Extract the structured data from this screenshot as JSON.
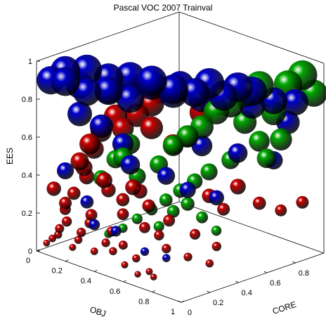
{
  "chart_data": {
    "type": "scatter",
    "title": "Pascal VOC 2007 Trainval",
    "xlabel": "OBJ",
    "ylabel": "CORE",
    "zlabel": "EES",
    "xlim": [
      0,
      1
    ],
    "ylim": [
      0,
      1
    ],
    "zlim": [
      0,
      1
    ],
    "x_ticks": [
      "0",
      "0.2",
      "0.4",
      "0.6",
      "0.8",
      "1"
    ],
    "y_ticks": [
      "0",
      "0.2",
      "0.4",
      "0.6",
      "0.8"
    ],
    "z_ticks": [
      "0",
      "0.2",
      "0.4",
      "0.6",
      "0.8",
      "1"
    ],
    "grid": false,
    "series": [
      {
        "color": "#cc0000",
        "points": [
          [
            0.05,
            0.02,
            0.05
          ],
          [
            0.08,
            0.03,
            0.08
          ],
          [
            0.1,
            0.05,
            0.1
          ],
          [
            0.12,
            0.04,
            0.14
          ],
          [
            0.15,
            0.06,
            0.18
          ],
          [
            0.2,
            0.05,
            0.06
          ],
          [
            0.22,
            0.07,
            0.1
          ],
          [
            0.25,
            0.06,
            0.15
          ],
          [
            0.28,
            0.09,
            0.2
          ],
          [
            0.3,
            0.08,
            0.25
          ],
          [
            0.35,
            0.05,
            0.08
          ],
          [
            0.38,
            0.1,
            0.12
          ],
          [
            0.4,
            0.12,
            0.18
          ],
          [
            0.45,
            0.08,
            0.1
          ],
          [
            0.5,
            0.1,
            0.14
          ],
          [
            0.55,
            0.06,
            0.06
          ],
          [
            0.6,
            0.09,
            0.1
          ],
          [
            0.65,
            0.05,
            0.04
          ],
          [
            0.7,
            0.08,
            0.06
          ],
          [
            0.75,
            0.06,
            0.05
          ],
          [
            0.1,
            0.1,
            0.22
          ],
          [
            0.12,
            0.14,
            0.3
          ],
          [
            0.15,
            0.2,
            0.38
          ],
          [
            0.18,
            0.15,
            0.45
          ],
          [
            0.2,
            0.1,
            0.5
          ],
          [
            0.22,
            0.18,
            0.55
          ],
          [
            0.25,
            0.12,
            0.6
          ],
          [
            0.3,
            0.2,
            0.35
          ],
          [
            0.32,
            0.15,
            0.42
          ],
          [
            0.35,
            0.25,
            0.3
          ],
          [
            0.4,
            0.2,
            0.25
          ],
          [
            0.42,
            0.3,
            0.35
          ],
          [
            0.45,
            0.22,
            0.4
          ],
          [
            0.5,
            0.28,
            0.3
          ],
          [
            0.55,
            0.2,
            0.22
          ],
          [
            0.6,
            0.25,
            0.18
          ],
          [
            0.62,
            0.3,
            0.25
          ],
          [
            0.7,
            0.2,
            0.15
          ],
          [
            0.75,
            0.35,
            0.2
          ],
          [
            0.8,
            0.25,
            0.12
          ],
          [
            0.85,
            0.4,
            0.15
          ],
          [
            0.9,
            0.3,
            0.1
          ],
          [
            0.3,
            0.3,
            0.65
          ],
          [
            0.35,
            0.35,
            0.72
          ],
          [
            0.4,
            0.4,
            0.78
          ],
          [
            0.45,
            0.35,
            0.68
          ],
          [
            0.5,
            0.45,
            0.58
          ],
          [
            0.55,
            0.5,
            0.62
          ],
          [
            0.6,
            0.55,
            0.75
          ],
          [
            0.65,
            0.6,
            0.8
          ],
          [
            0.2,
            0.25,
            0.62
          ],
          [
            0.25,
            0.3,
            0.7
          ],
          [
            0.7,
            0.5,
            0.35
          ],
          [
            0.75,
            0.55,
            0.28
          ],
          [
            0.8,
            0.6,
            0.4
          ],
          [
            0.85,
            0.7,
            0.3
          ],
          [
            0.9,
            0.8,
            0.25
          ],
          [
            0.95,
            0.9,
            0.28
          ],
          [
            0.15,
            0.05,
            0.28
          ],
          [
            0.1,
            0.02,
            0.35
          ]
        ]
      },
      {
        "color": "#0000cc",
        "points": [
          [
            0.05,
            0.05,
            0.9
          ],
          [
            0.1,
            0.1,
            0.95
          ],
          [
            0.15,
            0.05,
            0.92
          ],
          [
            0.2,
            0.15,
            0.97
          ],
          [
            0.25,
            0.1,
            0.88
          ],
          [
            0.3,
            0.2,
            0.94
          ],
          [
            0.35,
            0.15,
            0.9
          ],
          [
            0.4,
            0.25,
            0.96
          ],
          [
            0.45,
            0.2,
            0.87
          ],
          [
            0.5,
            0.3,
            0.93
          ],
          [
            0.55,
            0.25,
            0.98
          ],
          [
            0.6,
            0.35,
            0.9
          ],
          [
            0.65,
            0.3,
            0.95
          ],
          [
            0.7,
            0.4,
            0.92
          ],
          [
            0.75,
            0.45,
            0.97
          ],
          [
            0.8,
            0.5,
            0.9
          ],
          [
            0.85,
            0.55,
            0.95
          ],
          [
            0.9,
            0.6,
            0.93
          ],
          [
            0.1,
            0.2,
            0.85
          ],
          [
            0.2,
            0.3,
            0.82
          ],
          [
            0.3,
            0.35,
            0.86
          ],
          [
            0.4,
            0.45,
            0.84
          ],
          [
            0.5,
            0.5,
            0.88
          ],
          [
            0.6,
            0.55,
            0.82
          ],
          [
            0.7,
            0.6,
            0.86
          ],
          [
            0.8,
            0.7,
            0.8
          ],
          [
            0.9,
            0.75,
            0.84
          ],
          [
            0.95,
            0.85,
            0.82
          ],
          [
            0.2,
            0.1,
            0.75
          ],
          [
            0.3,
            0.15,
            0.7
          ],
          [
            0.4,
            0.2,
            0.62
          ],
          [
            0.5,
            0.15,
            0.55
          ],
          [
            0.6,
            0.3,
            0.48
          ],
          [
            0.7,
            0.35,
            0.42
          ],
          [
            0.8,
            0.45,
            0.38
          ],
          [
            0.15,
            0.05,
            0.45
          ],
          [
            0.25,
            0.1,
            0.3
          ],
          [
            0.35,
            0.05,
            0.22
          ],
          [
            0.45,
            0.1,
            0.2
          ],
          [
            0.6,
            0.15,
            0.12
          ],
          [
            0.7,
            0.2,
            0.1
          ],
          [
            0.65,
            0.5,
            0.6
          ],
          [
            0.75,
            0.65,
            0.55
          ],
          [
            0.85,
            0.8,
            0.5
          ],
          [
            0.9,
            0.85,
            0.7
          ]
        ]
      },
      {
        "color": "#00aa00",
        "points": [
          [
            0.95,
            0.9,
            0.95
          ],
          [
            0.98,
            0.95,
            0.85
          ],
          [
            0.9,
            0.85,
            0.9
          ],
          [
            0.85,
            0.8,
            0.75
          ],
          [
            0.95,
            0.75,
            0.65
          ],
          [
            0.9,
            0.7,
            0.55
          ],
          [
            0.8,
            0.75,
            0.6
          ],
          [
            0.75,
            0.7,
            0.7
          ],
          [
            0.7,
            0.65,
            0.5
          ],
          [
            0.65,
            0.55,
            0.45
          ],
          [
            0.6,
            0.5,
            0.4
          ],
          [
            0.55,
            0.45,
            0.35
          ],
          [
            0.5,
            0.4,
            0.3
          ],
          [
            0.45,
            0.35,
            0.25
          ],
          [
            0.4,
            0.3,
            0.2
          ],
          [
            0.35,
            0.25,
            0.15
          ],
          [
            0.3,
            0.2,
            0.12
          ],
          [
            0.5,
            0.35,
            0.5
          ],
          [
            0.55,
            0.4,
            0.6
          ],
          [
            0.6,
            0.45,
            0.65
          ],
          [
            0.65,
            0.5,
            0.7
          ],
          [
            0.7,
            0.55,
            0.78
          ],
          [
            0.75,
            0.6,
            0.82
          ],
          [
            0.8,
            0.65,
            0.88
          ],
          [
            0.85,
            0.7,
            0.92
          ],
          [
            0.55,
            0.3,
            0.2
          ],
          [
            0.6,
            0.35,
            0.28
          ],
          [
            0.65,
            0.4,
            0.32
          ],
          [
            0.7,
            0.45,
            0.25
          ],
          [
            0.75,
            0.5,
            0.18
          ],
          [
            0.45,
            0.25,
            0.45
          ],
          [
            0.4,
            0.2,
            0.55
          ],
          [
            0.35,
            0.3,
            0.58
          ],
          [
            0.3,
            0.25,
            0.5
          ],
          [
            0.25,
            0.2,
            0.4
          ]
        ]
      }
    ]
  }
}
